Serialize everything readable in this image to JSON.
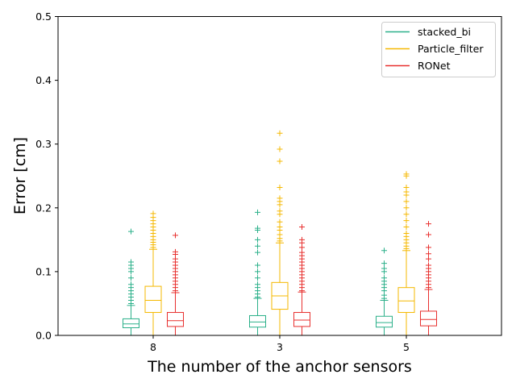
{
  "chart_data": {
    "type": "box",
    "title": "",
    "xlabel": "The number of the anchor sensors",
    "ylabel": "Error [cm]",
    "categories": [
      "8",
      "3",
      "5"
    ],
    "ylim": [
      0,
      0.5
    ],
    "yticks": [
      "0.0",
      "0.1",
      "0.2",
      "0.3",
      "0.4",
      "0.5"
    ],
    "grid": false,
    "legend_position": "top-right",
    "series": [
      {
        "name": "stacked_bi",
        "color": "#2bb08a",
        "boxes": [
          {
            "q1": 0.012,
            "median": 0.018,
            "q3": 0.026,
            "whisker_low": 0.0,
            "whisker_high": 0.047,
            "outliers": [
              0.05,
              0.055,
              0.06,
              0.065,
              0.07,
              0.075,
              0.08,
              0.09,
              0.1,
              0.105,
              0.11,
              0.115,
              0.163
            ]
          },
          {
            "q1": 0.013,
            "median": 0.021,
            "q3": 0.031,
            "whisker_low": 0.0,
            "whisker_high": 0.058,
            "outliers": [
              0.06,
              0.065,
              0.07,
              0.075,
              0.08,
              0.09,
              0.1,
              0.11,
              0.13,
              0.14,
              0.15,
              0.165,
              0.168,
              0.193
            ]
          },
          {
            "q1": 0.013,
            "median": 0.02,
            "q3": 0.03,
            "whisker_low": 0.0,
            "whisker_high": 0.055,
            "outliers": [
              0.058,
              0.063,
              0.07,
              0.075,
              0.08,
              0.085,
              0.09,
              0.1,
              0.105,
              0.113,
              0.133
            ]
          }
        ]
      },
      {
        "name": "Particle_filter",
        "color": "#f5b800",
        "boxes": [
          {
            "q1": 0.036,
            "median": 0.055,
            "q3": 0.077,
            "whisker_low": 0.0,
            "whisker_high": 0.135,
            "outliers": [
              0.138,
              0.142,
              0.146,
              0.15,
              0.155,
              0.16,
              0.165,
              0.17,
              0.175,
              0.18,
              0.185,
              0.191
            ]
          },
          {
            "q1": 0.041,
            "median": 0.062,
            "q3": 0.083,
            "whisker_low": 0.0,
            "whisker_high": 0.145,
            "outliers": [
              0.148,
              0.152,
              0.158,
              0.165,
              0.17,
              0.178,
              0.19,
              0.195,
              0.205,
              0.21,
              0.215,
              0.232,
              0.273,
              0.292,
              0.317
            ]
          },
          {
            "q1": 0.036,
            "median": 0.054,
            "q3": 0.075,
            "whisker_low": 0.0,
            "whisker_high": 0.133,
            "outliers": [
              0.136,
              0.14,
              0.145,
              0.15,
              0.155,
              0.16,
              0.17,
              0.18,
              0.19,
              0.2,
              0.21,
              0.22,
              0.225,
              0.232,
              0.25,
              0.253
            ]
          }
        ]
      },
      {
        "name": "RONet",
        "color": "#e8302f",
        "boxes": [
          {
            "q1": 0.014,
            "median": 0.023,
            "q3": 0.036,
            "whisker_low": 0.0,
            "whisker_high": 0.067,
            "outliers": [
              0.07,
              0.075,
              0.08,
              0.085,
              0.09,
              0.095,
              0.1,
              0.105,
              0.11,
              0.115,
              0.12,
              0.127,
              0.131,
              0.157
            ]
          },
          {
            "q1": 0.014,
            "median": 0.024,
            "q3": 0.036,
            "whisker_low": 0.0,
            "whisker_high": 0.068,
            "outliers": [
              0.07,
              0.075,
              0.08,
              0.085,
              0.09,
              0.095,
              0.1,
              0.105,
              0.11,
              0.115,
              0.12,
              0.125,
              0.13,
              0.138,
              0.145,
              0.15,
              0.17
            ]
          },
          {
            "q1": 0.015,
            "median": 0.025,
            "q3": 0.038,
            "whisker_low": 0.0,
            "whisker_high": 0.072,
            "outliers": [
              0.075,
              0.08,
              0.085,
              0.09,
              0.095,
              0.1,
              0.105,
              0.11,
              0.12,
              0.128,
              0.138,
              0.158,
              0.175
            ]
          }
        ]
      }
    ]
  }
}
